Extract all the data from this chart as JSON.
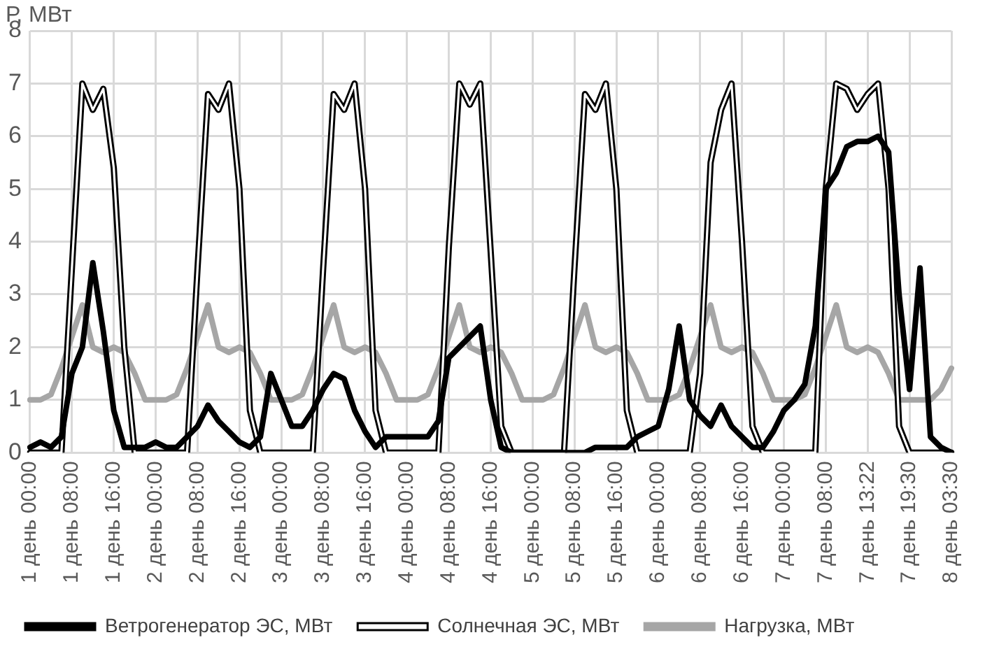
{
  "chart_data": {
    "type": "line",
    "ylabel": "Р, МВт",
    "categories": [
      "1 день 00:00",
      null,
      null,
      null,
      "1 день 08:00",
      null,
      null,
      null,
      "1 день 16:00",
      null,
      null,
      null,
      "2 день 00:00",
      null,
      null,
      null,
      "2 день 08:00",
      null,
      null,
      null,
      "2 день 16:00",
      null,
      null,
      null,
      "3 день 00:00",
      null,
      null,
      null,
      "3 день 08:00",
      null,
      null,
      null,
      "3 день 16:00",
      null,
      null,
      null,
      "4 день 00:00",
      null,
      null,
      null,
      "4 день 08:00",
      null,
      null,
      null,
      "4 день 16:00",
      null,
      null,
      null,
      "5 день 00:00",
      null,
      null,
      null,
      "5 день 08:00",
      null,
      null,
      null,
      "5 день 16:00",
      null,
      null,
      null,
      "6 день 00:00",
      null,
      null,
      null,
      "6 день 08:00",
      null,
      null,
      null,
      "6 день 16:00",
      null,
      null,
      null,
      "7 день 00:00",
      null,
      null,
      null,
      "7 день 08:00",
      null,
      null,
      null,
      "7 день 13:22",
      null,
      null,
      null,
      "7 день 19:30",
      null,
      null,
      null,
      "8 день 03:30"
    ],
    "series": [
      {
        "name": "Ветрогенератор ЭС, МВт",
        "color": "#000000",
        "values": [
          0.1,
          0.2,
          0.1,
          0.3,
          1.5,
          2,
          3.6,
          2.3,
          0.8,
          0.1,
          0.1,
          0.1,
          0.2,
          0.1,
          0.1,
          0.3,
          0.5,
          0.9,
          0.6,
          0.4,
          0.2,
          0.1,
          0.3,
          1.5,
          1,
          0.5,
          0.5,
          0.8,
          1.2,
          1.5,
          1.4,
          0.8,
          0.4,
          0.1,
          0.3,
          0.3,
          0.3,
          0.3,
          0.3,
          0.6,
          1.8,
          2,
          2.2,
          2.4,
          1,
          0.1,
          0,
          0,
          0,
          0,
          0,
          0,
          0,
          0,
          0.1,
          0.1,
          0.1,
          0.1,
          0.3,
          0.4,
          0.5,
          1.2,
          2.4,
          1,
          0.7,
          0.5,
          0.9,
          0.5,
          0.3,
          0.1,
          0.1,
          0.4,
          0.8,
          1,
          1.3,
          2.4,
          5,
          5.3,
          5.8,
          5.9,
          5.9,
          6,
          5.7,
          3,
          1.2,
          3.5,
          0.3,
          0.1,
          0
        ]
      },
      {
        "name": "Солнечная ЭС, МВт",
        "color": "#000000",
        "values": [
          0,
          0,
          0,
          0,
          3.5,
          7,
          6.5,
          6.9,
          5.4,
          2,
          0,
          0,
          0,
          0,
          0,
          0,
          3.5,
          6.8,
          6.5,
          7,
          5,
          0.8,
          0,
          0,
          0,
          0,
          0,
          0,
          3.5,
          6.8,
          6.5,
          7,
          5,
          0.8,
          0,
          0,
          0,
          0,
          0,
          0,
          3.9,
          7,
          6.6,
          7,
          3.8,
          0.5,
          0,
          0,
          0,
          0,
          0,
          0,
          3.5,
          6.8,
          6.5,
          7,
          5,
          0.8,
          0,
          0,
          0,
          0,
          0,
          0,
          1.5,
          5.5,
          6.5,
          7,
          4,
          0.5,
          0,
          0,
          0,
          0,
          0,
          0,
          5,
          7,
          6.9,
          6.5,
          6.8,
          7,
          5,
          0.5,
          0,
          0,
          0,
          0,
          0
        ]
      },
      {
        "name": "Нагрузка, МВт",
        "color": "#a6a6a6",
        "values": [
          1,
          1,
          1.1,
          1.6,
          2.2,
          2.8,
          2,
          1.9,
          2,
          1.9,
          1.5,
          1,
          1,
          1,
          1.1,
          1.6,
          2.2,
          2.8,
          2,
          1.9,
          2,
          1.9,
          1.5,
          1,
          1,
          1,
          1.1,
          1.6,
          2.2,
          2.8,
          2,
          1.9,
          2,
          1.9,
          1.5,
          1,
          1,
          1,
          1.1,
          1.6,
          2.2,
          2.8,
          2,
          1.9,
          2,
          1.9,
          1.5,
          1,
          1,
          1,
          1.1,
          1.6,
          2.2,
          2.8,
          2,
          1.9,
          2,
          1.9,
          1.5,
          1,
          1,
          1,
          1.1,
          1.6,
          2.2,
          2.8,
          2,
          1.9,
          2,
          1.9,
          1.5,
          1,
          1,
          1,
          1.1,
          1.6,
          2.2,
          2.8,
          2,
          1.9,
          2,
          1.9,
          1.5,
          1,
          1,
          1,
          1,
          1.2,
          1.6
        ]
      }
    ],
    "ylim": [
      0,
      8
    ],
    "yticks": [
      0,
      1,
      2,
      3,
      4,
      5,
      6,
      7,
      8
    ],
    "grid": true,
    "legend": "bottom"
  }
}
